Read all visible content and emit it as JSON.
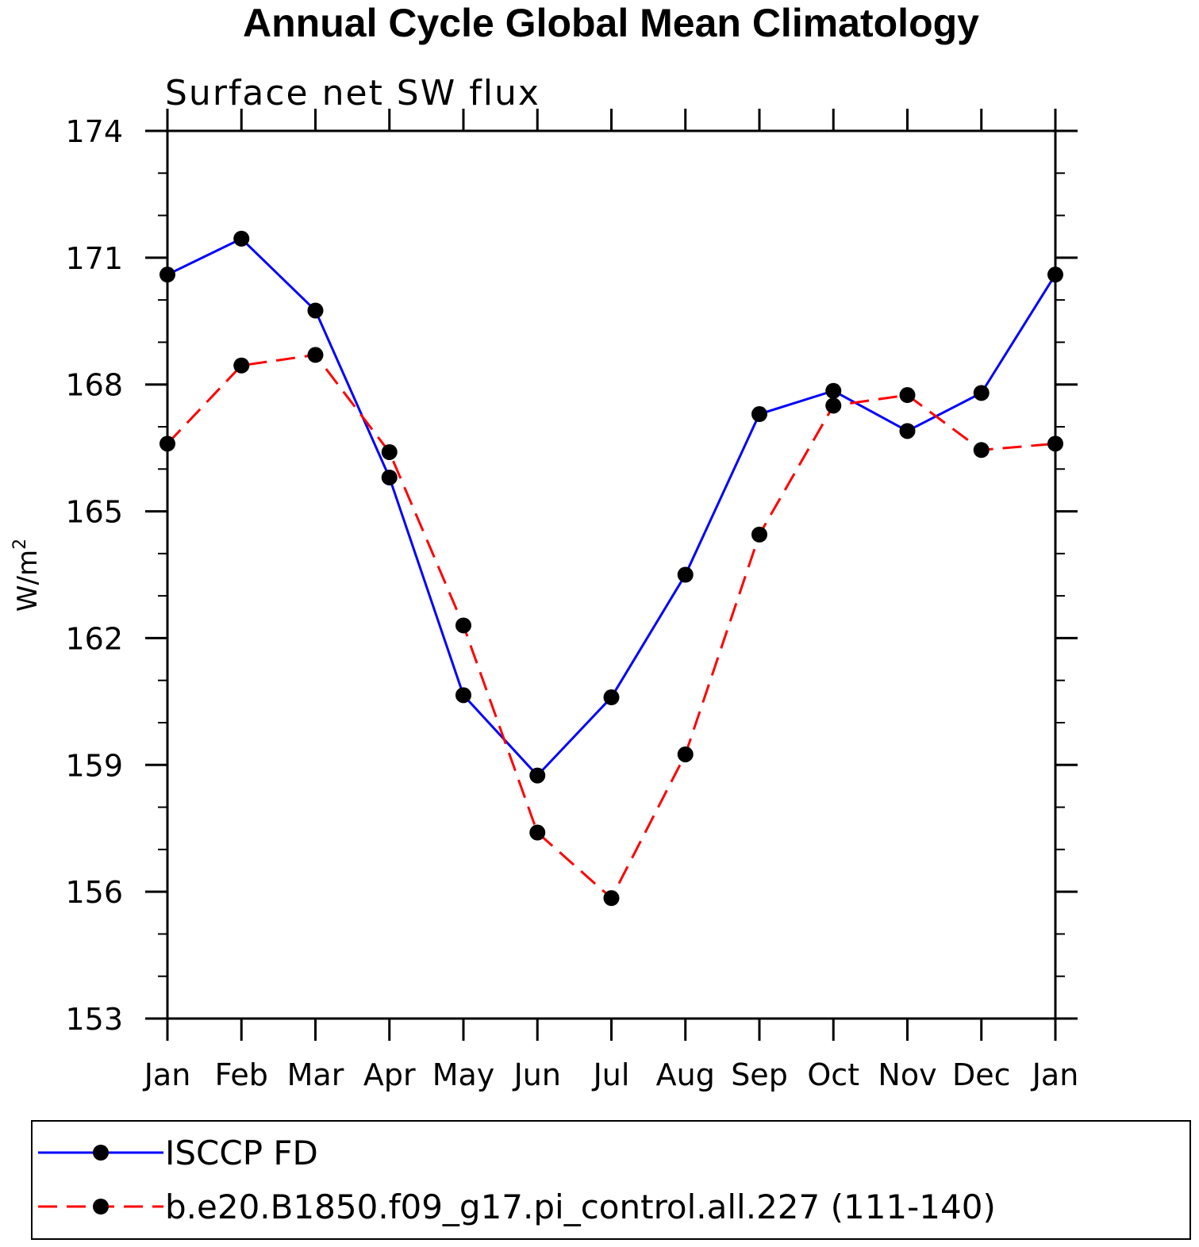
{
  "chart_data": {
    "type": "line",
    "title": "Annual Cycle Global Mean Climatology",
    "subtitle": "Surface net SW flux",
    "ylabel": "W/m",
    "ylabel_superscript": "2",
    "xlabel": "",
    "ylim": [
      153,
      174
    ],
    "yticks": [
      "153",
      "156",
      "159",
      "162",
      "165",
      "168",
      "171",
      "174"
    ],
    "categories": [
      "Jan",
      "Feb",
      "Mar",
      "Apr",
      "May",
      "Jun",
      "Jul",
      "Aug",
      "Sep",
      "Oct",
      "Nov",
      "Dec",
      "Jan"
    ],
    "series": [
      {
        "name": "ISCCP FD",
        "color": "#0000ff",
        "dash": "solid",
        "values": [
          170.6,
          171.45,
          169.75,
          165.8,
          160.65,
          158.75,
          160.6,
          163.5,
          167.3,
          167.85,
          166.9,
          167.8,
          170.6
        ]
      },
      {
        "name": "b.e20.B1850.f09_g17.pi_control.all.227 (111-140)",
        "color": "#ff0000",
        "dash": "dashed",
        "values": [
          166.6,
          168.45,
          168.7,
          166.4,
          162.3,
          157.4,
          155.85,
          159.25,
          164.45,
          167.5,
          167.75,
          166.45,
          166.6
        ]
      }
    ],
    "legend_position": "bottom"
  }
}
